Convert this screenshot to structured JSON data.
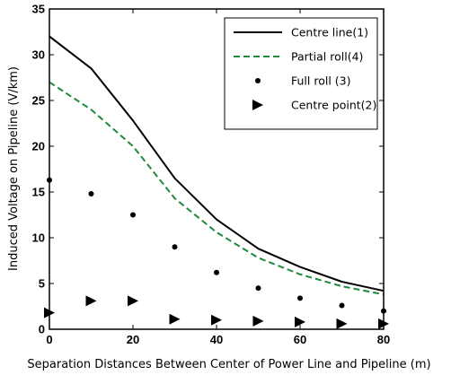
{
  "chart_data": {
    "type": "line",
    "title": "",
    "xlabel": "Separation Distances Between Center of Power Line and Pipeline (m)",
    "ylabel": "Induced Voltage on Pipeline (V/km)",
    "xlim": [
      0,
      80
    ],
    "ylim": [
      0,
      35
    ],
    "x_ticks": [
      0,
      20,
      40,
      60,
      80
    ],
    "y_ticks": [
      0,
      5,
      10,
      15,
      20,
      25,
      30,
      35
    ],
    "grid": false,
    "legend_position": "top-right",
    "series": [
      {
        "name": "Centre line(1)",
        "style": "solid-line",
        "color": "#000000",
        "x": [
          0,
          10,
          20,
          30,
          40,
          50,
          60,
          70,
          80
        ],
        "y": [
          32,
          28.5,
          22.8,
          16.5,
          12,
          8.8,
          6.8,
          5.2,
          4.2
        ]
      },
      {
        "name": "Partial roll(4)",
        "style": "dashed-line",
        "color": "#1e8a3c",
        "x": [
          0,
          10,
          20,
          30,
          40,
          50,
          60,
          70,
          80
        ],
        "y": [
          27,
          24,
          20,
          14.3,
          10.6,
          7.8,
          6,
          4.7,
          3.8
        ]
      },
      {
        "name": "Full roll (3)",
        "style": "dot-marker",
        "color": "#000000",
        "x": [
          0,
          10,
          20,
          30,
          40,
          50,
          60,
          70,
          80
        ],
        "y": [
          16.3,
          14.8,
          12.5,
          9,
          6.2,
          4.5,
          3.4,
          2.6,
          2
        ]
      },
      {
        "name": "Centre point(2)",
        "style": "triangle-right-marker",
        "color": "#000000",
        "x": [
          0,
          10,
          20,
          30,
          40,
          50,
          60,
          70,
          80
        ],
        "y": [
          1.8,
          3.1,
          3.1,
          1.1,
          1,
          0.9,
          0.8,
          0.6,
          0.6
        ]
      }
    ]
  }
}
